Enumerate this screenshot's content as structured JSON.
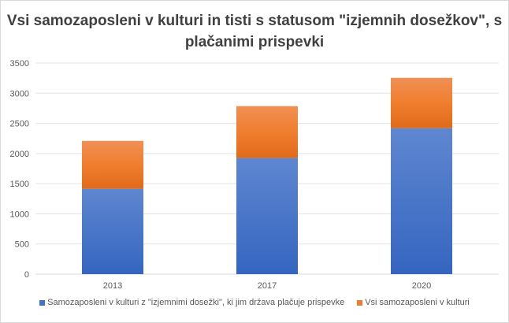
{
  "chart_data": {
    "type": "bar",
    "stacked": true,
    "title": "Vsi samozaposleni  v kulturi in tisti s statusom \"izjemnih dosežkov\", s plačanimi prispevki",
    "categories": [
      "2013",
      "2017",
      "2020"
    ],
    "series": [
      {
        "name": "Samozaposleni v kulturi z \"izjemnimi dosežki\", ki jim država plačuje prispevke",
        "color": "#4472c4",
        "values": [
          1415,
          1925,
          2420
        ]
      },
      {
        "name": "Vsi samozaposleni v kulturi",
        "color": "#ed7d31",
        "values": [
          795,
          860,
          835
        ]
      }
    ],
    "xlabel": "",
    "ylabel": "",
    "ylim": [
      0,
      3500
    ],
    "yticks": [
      "0",
      "500",
      "1000",
      "1500",
      "2000",
      "2500",
      "3000",
      "3500"
    ],
    "grid": true,
    "legend_position": "bottom"
  }
}
